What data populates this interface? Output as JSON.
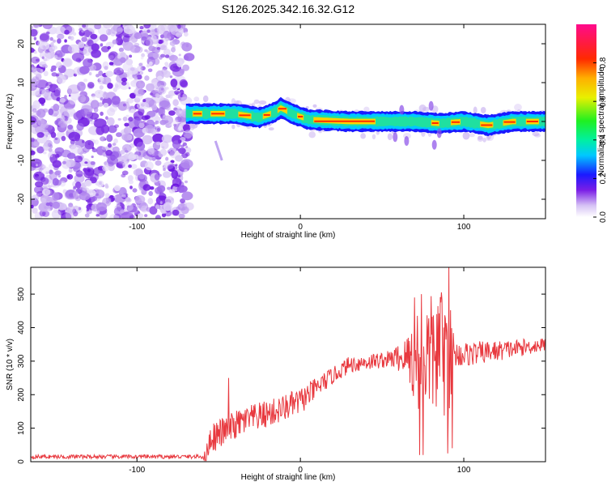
{
  "title": "S126.2025.342.16.32.G12",
  "chart_data": [
    {
      "type": "heatmap",
      "xlabel": "Height of straight line (km)",
      "ylabel": "Frequency (Hz)",
      "xlim": [
        -165,
        150
      ],
      "ylim": [
        -25,
        25
      ],
      "xticks": [
        -100,
        0,
        100
      ],
      "yticks": [
        -20,
        -10,
        0,
        10,
        20
      ],
      "noise_region_x": [
        -165,
        -68
      ],
      "signal_band": {
        "x_start": -70,
        "x_end": 150,
        "centerline": [
          {
            "x": -70,
            "y": 2
          },
          {
            "x": -40,
            "y": 2
          },
          {
            "x": -25,
            "y": 1.0
          },
          {
            "x": -15,
            "y": 2.5
          },
          {
            "x": -12,
            "y": 3.5
          },
          {
            "x": -5,
            "y": 2.0
          },
          {
            "x": 5,
            "y": 0.5
          },
          {
            "x": 30,
            "y": 0.0
          },
          {
            "x": 55,
            "y": 0.0
          },
          {
            "x": 70,
            "y": 0.0
          },
          {
            "x": 85,
            "y": -0.5
          },
          {
            "x": 100,
            "y": 0.0
          },
          {
            "x": 115,
            "y": -1.0
          },
          {
            "x": 130,
            "y": 0.0
          },
          {
            "x": 150,
            "y": 0.0
          }
        ]
      },
      "colorbar": {
        "label": "Normalized spectral amplitude",
        "range": [
          0.0,
          1.0
        ],
        "ticks": [
          0.0,
          0.2,
          0.4,
          0.6,
          0.8
        ],
        "tick_labels": [
          "0.0",
          "0.2",
          "0.4",
          "0.6",
          "0.8"
        ]
      }
    },
    {
      "type": "line",
      "xlabel": "Height of straight line (km)",
      "ylabel": "SNR (10 * v/v)",
      "xlim": [
        -165,
        150
      ],
      "ylim": [
        0,
        580
      ],
      "xticks": [
        -100,
        0,
        100
      ],
      "yticks": [
        0,
        100,
        200,
        300,
        400,
        500
      ],
      "color": "#e8393f",
      "series": [
        {
          "name": "SNR",
          "anchors": [
            {
              "x": -165,
              "y": 15
            },
            {
              "x": -100,
              "y": 15
            },
            {
              "x": -58,
              "y": 15
            },
            {
              "x": -55,
              "y": 70
            },
            {
              "x": -35,
              "y": 120
            },
            {
              "x": -15,
              "y": 150
            },
            {
              "x": 0,
              "y": 180
            },
            {
              "x": 15,
              "y": 240
            },
            {
              "x": 30,
              "y": 290
            },
            {
              "x": 45,
              "y": 300
            },
            {
              "x": 60,
              "y": 310
            },
            {
              "x": 80,
              "y": 320
            },
            {
              "x": 100,
              "y": 320
            },
            {
              "x": 120,
              "y": 330
            },
            {
              "x": 150,
              "y": 350
            }
          ],
          "noise_amplitude": [
            {
              "x": -165,
              "a": 6
            },
            {
              "x": -60,
              "a": 6
            },
            {
              "x": -55,
              "a": 45
            },
            {
              "x": 0,
              "a": 40
            },
            {
              "x": 20,
              "a": 25
            },
            {
              "x": 55,
              "a": 25
            },
            {
              "x": 65,
              "a": 60
            },
            {
              "x": 70,
              "a": 160
            },
            {
              "x": 90,
              "a": 200
            },
            {
              "x": 95,
              "a": 40
            },
            {
              "x": 150,
              "a": 20
            }
          ],
          "spikes": [
            {
              "x": -44,
              "y": 250
            },
            {
              "x": 70,
              "y": 490
            },
            {
              "x": 73,
              "y": 20
            },
            {
              "x": 74,
              "y": 500
            },
            {
              "x": 75,
              "y": 20
            },
            {
              "x": 86,
              "y": 475
            },
            {
              "x": 90,
              "y": 25
            },
            {
              "x": 91,
              "y": 580
            },
            {
              "x": 93,
              "y": 40
            }
          ]
        }
      ]
    }
  ]
}
